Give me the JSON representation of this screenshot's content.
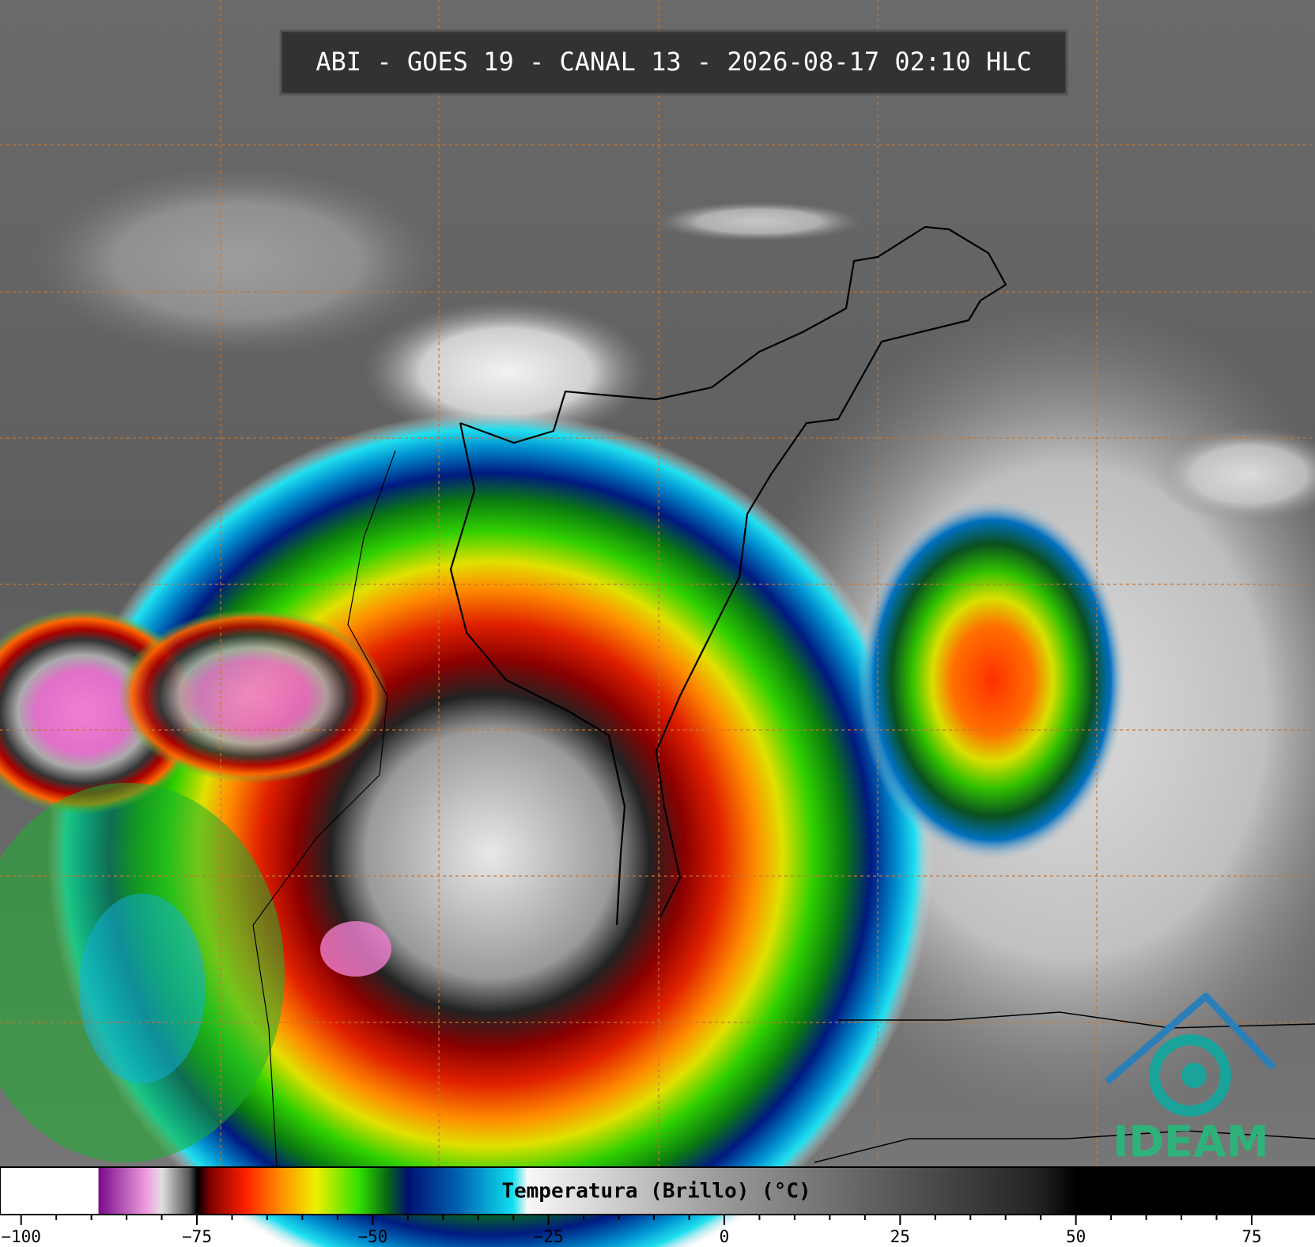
{
  "header": {
    "title": "ABI - GOES 19 - CANAL 13 - 2026-08-17 02:10 HLC"
  },
  "colorbar": {
    "label": "Temperatura (Brillo) (°C)",
    "xlim": [
      -103,
      84
    ],
    "xticks": [
      {
        "value": -100,
        "label": "−100"
      },
      {
        "value": -75,
        "label": "−75"
      },
      {
        "value": -50,
        "label": "−50"
      },
      {
        "value": -25,
        "label": "−25"
      },
      0,
      25,
      50,
      75
    ]
  },
  "logo": {
    "text": "IDEAM"
  }
}
